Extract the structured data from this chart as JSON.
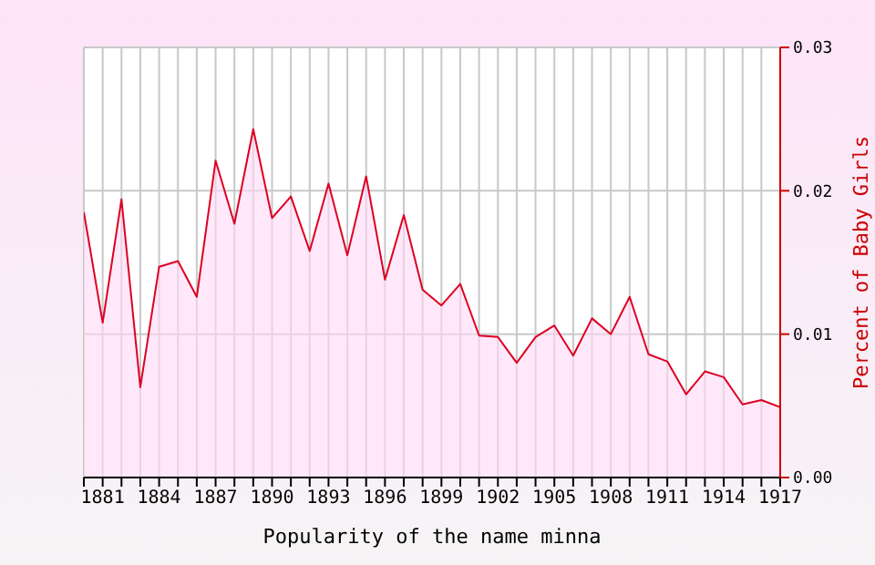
{
  "chart_data": {
    "type": "area",
    "xlabel": "Popularity of the name minna",
    "ylabel": "Percent of Baby Girls",
    "x": [
      1880,
      1881,
      1882,
      1883,
      1884,
      1885,
      1886,
      1887,
      1888,
      1889,
      1890,
      1891,
      1892,
      1893,
      1894,
      1895,
      1896,
      1897,
      1898,
      1899,
      1900,
      1901,
      1902,
      1903,
      1904,
      1905,
      1906,
      1907,
      1908,
      1909,
      1910,
      1911,
      1912,
      1913,
      1914,
      1915,
      1916,
      1917
    ],
    "series": [
      {
        "color": "#dd0022",
        "values": [
          0.0185,
          0.0108,
          0.0194,
          0.0063,
          0.0147,
          0.0151,
          0.0126,
          0.0221,
          0.0177,
          0.0243,
          0.0181,
          0.0196,
          0.0158,
          0.0205,
          0.0155,
          0.021,
          0.0138,
          0.0183,
          0.0131,
          0.012,
          0.0135,
          0.0099,
          0.0098,
          0.008,
          0.0098,
          0.0106,
          0.0085,
          0.0111,
          0.01,
          0.0126,
          0.0086,
          0.0081,
          0.0058,
          0.0074,
          0.007,
          0.0051,
          0.0054,
          0.0049
        ]
      }
    ],
    "xlim": [
      1880,
      1917
    ],
    "xticks": [
      {
        "value": 1880,
        "label": null
      },
      1881,
      {
        "value": 1882,
        "label": null
      },
      {
        "value": 1883,
        "label": null
      },
      1884,
      {
        "value": 1885,
        "label": null
      },
      {
        "value": 1886,
        "label": null
      },
      1887,
      {
        "value": 1888,
        "label": null
      },
      {
        "value": 1889,
        "label": null
      },
      1890,
      {
        "value": 1891,
        "label": null
      },
      {
        "value": 1892,
        "label": null
      },
      1893,
      {
        "value": 1894,
        "label": null
      },
      {
        "value": 1895,
        "label": null
      },
      1896,
      {
        "value": 1897,
        "label": null
      },
      {
        "value": 1898,
        "label": null
      },
      1899,
      {
        "value": 1900,
        "label": null
      },
      {
        "value": 1901,
        "label": null
      },
      1902,
      {
        "value": 1903,
        "label": null
      },
      {
        "value": 1904,
        "label": null
      },
      1905,
      {
        "value": 1906,
        "label": null
      },
      {
        "value": 1907,
        "label": null
      },
      1908,
      {
        "value": 1909,
        "label": null
      },
      {
        "value": 1910,
        "label": null
      },
      1911,
      {
        "value": 1912,
        "label": null
      },
      {
        "value": 1913,
        "label": null
      },
      1914,
      {
        "value": 1915,
        "label": null
      },
      {
        "value": 1916,
        "label": null
      },
      1917
    ],
    "ylim": [
      0,
      0.03
    ],
    "yticks": [
      {
        "value": 0,
        "label": "0.00"
      },
      {
        "value": 0.01,
        "label": "0.01"
      },
      {
        "value": 0.02,
        "label": "0.02"
      },
      {
        "value": 0.03,
        "label": "0.03"
      }
    ],
    "grid": true,
    "legend": false,
    "marker": "none",
    "line_style": "solid"
  }
}
